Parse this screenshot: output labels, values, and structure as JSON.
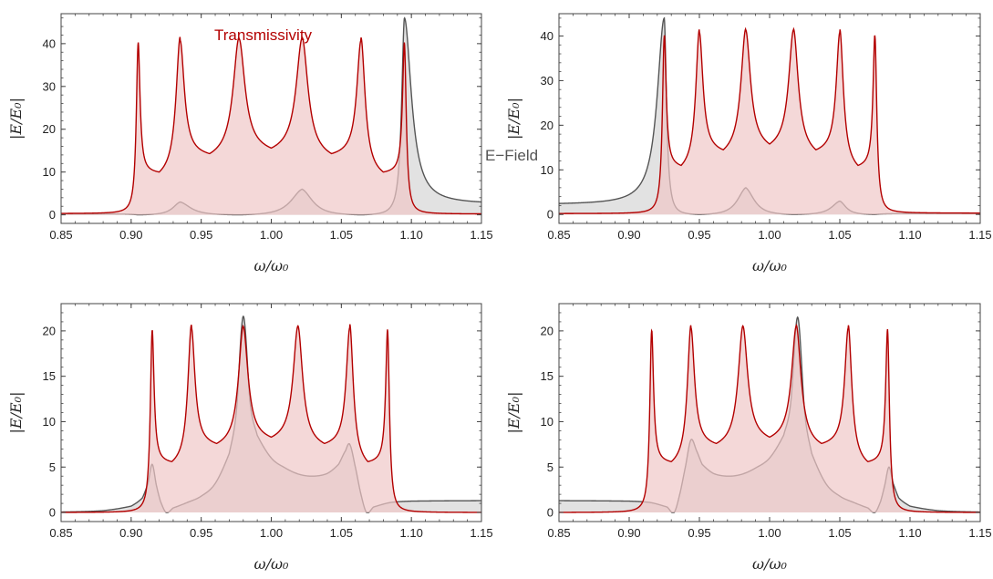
{
  "chart_data": [
    {
      "type": "area",
      "xlabel": "ω/ω₀",
      "ylabel": "|E/E₀|",
      "xlim": [
        0.85,
        1.15
      ],
      "ylim": [
        -2,
        47
      ],
      "xticks": [
        "0.85",
        "0.90",
        "0.95",
        "1.00",
        "1.05",
        "1.10",
        "1.15"
      ],
      "yticks": [
        "0",
        "10",
        "20",
        "30",
        "40"
      ],
      "grid": false,
      "annotations": [
        {
          "text": "Transmissivity",
          "color": "#b30000"
        },
        {
          "text": "E−Field",
          "color": "#555555"
        }
      ],
      "series": [
        {
          "name": "Transmissivity",
          "color": "#b30000",
          "fill": "#f0c8c8",
          "peaks": [
            {
              "x": 0.905,
              "y": 40,
              "w": 0.0016
            },
            {
              "x": 0.935,
              "y": 40,
              "w": 0.0035
            },
            {
              "x": 0.977,
              "y": 40,
              "w": 0.005
            },
            {
              "x": 1.022,
              "y": 40,
              "w": 0.005
            },
            {
              "x": 1.064,
              "y": 40,
              "w": 0.0035
            },
            {
              "x": 1.095,
              "y": 40,
              "w": 0.0016
            }
          ],
          "valleys": [
            {
              "x": 0.92,
              "y": 10
            },
            {
              "x": 0.956,
              "y": 14.3
            },
            {
              "x": 1.0,
              "y": 15.6
            },
            {
              "x": 1.043,
              "y": 14.3
            },
            {
              "x": 1.08,
              "y": 10
            }
          ],
          "edges": {
            "left": 0.3,
            "right": 0.2
          }
        },
        {
          "name": "E−Field",
          "color": "#555555",
          "fill": "#d8d8d8",
          "peaks": [
            {
              "x": 0.935,
              "y": 3
            },
            {
              "x": 1.022,
              "y": 6
            },
            {
              "x": 1.095,
              "y": 46
            }
          ],
          "zeros": [
            0.905,
            0.977,
            1.064
          ],
          "edges": {
            "left": 0.2,
            "right": 2.5
          }
        }
      ]
    },
    {
      "type": "area",
      "xlabel": "ω/ω₀",
      "ylabel": "|E/E₀|",
      "xlim": [
        0.85,
        1.15
      ],
      "ylim": [
        -2,
        45
      ],
      "xticks": [
        "0.85",
        "0.90",
        "0.95",
        "1.00",
        "1.05",
        "1.10",
        "1.15"
      ],
      "yticks": [
        "0",
        "10",
        "20",
        "30",
        "40"
      ],
      "grid": false,
      "series": [
        {
          "name": "Transmissivity",
          "color": "#b30000",
          "fill": "#f0c8c8",
          "peaks": [
            {
              "x": 0.925,
              "y": 40,
              "w": 0.0016
            },
            {
              "x": 0.95,
              "y": 40,
              "w": 0.003
            },
            {
              "x": 0.983,
              "y": 40,
              "w": 0.004
            },
            {
              "x": 1.017,
              "y": 40,
              "w": 0.004
            },
            {
              "x": 1.05,
              "y": 40,
              "w": 0.003
            },
            {
              "x": 1.075,
              "y": 40,
              "w": 0.0016
            }
          ],
          "valleys": [
            {
              "x": 0.937,
              "y": 11
            },
            {
              "x": 0.967,
              "y": 14.5
            },
            {
              "x": 1.0,
              "y": 15.8
            },
            {
              "x": 1.033,
              "y": 14.5
            },
            {
              "x": 1.063,
              "y": 11
            }
          ],
          "edges": {
            "left": 0.2,
            "right": 0.3
          }
        },
        {
          "name": "E−Field",
          "color": "#555555",
          "fill": "#d8d8d8",
          "peaks": [
            {
              "x": 0.925,
              "y": 44
            },
            {
              "x": 0.983,
              "y": 6
            },
            {
              "x": 1.05,
              "y": 3
            }
          ],
          "zeros": [
            0.95,
            1.017,
            1.075
          ],
          "edges": {
            "left": 2.2,
            "right": 0.2
          }
        }
      ]
    },
    {
      "type": "area",
      "xlabel": "ω/ω₀",
      "ylabel": "|E/E₀|",
      "xlim": [
        0.85,
        1.15
      ],
      "ylim": [
        -1,
        23
      ],
      "xticks": [
        "0.85",
        "0.90",
        "0.95",
        "1.00",
        "1.05",
        "1.10",
        "1.15"
      ],
      "yticks": [
        "0",
        "5",
        "10",
        "15",
        "20"
      ],
      "grid": false,
      "series": [
        {
          "name": "Transmissivity",
          "color": "#b30000",
          "fill": "#f0c8c8",
          "peaks": [
            {
              "x": 0.915,
              "y": 20,
              "w": 0.0016
            },
            {
              "x": 0.943,
              "y": 20,
              "w": 0.003
            },
            {
              "x": 0.98,
              "y": 20,
              "w": 0.004
            },
            {
              "x": 1.019,
              "y": 20,
              "w": 0.004
            },
            {
              "x": 1.056,
              "y": 20,
              "w": 0.003
            },
            {
              "x": 1.083,
              "y": 20,
              "w": 0.0016
            }
          ],
          "valleys": [
            {
              "x": 0.929,
              "y": 5.6
            },
            {
              "x": 0.961,
              "y": 7.6
            },
            {
              "x": 1.0,
              "y": 8.3
            },
            {
              "x": 1.038,
              "y": 7.6
            },
            {
              "x": 1.069,
              "y": 5.6
            }
          ],
          "edges": {
            "left": 0.0,
            "right": 0.0
          }
        },
        {
          "name": "E−Field",
          "color": "#555555",
          "fill": "#d8d8d8",
          "points": [
            [
              0.85,
              0.05
            ],
            [
              0.88,
              0.2
            ],
            [
              0.9,
              0.7
            ],
            [
              0.908,
              1.6
            ],
            [
              0.912,
              3.2
            ],
            [
              0.915,
              5.3
            ],
            [
              0.918,
              3.0
            ],
            [
              0.921,
              1.2
            ],
            [
              0.925,
              0.0
            ],
            [
              0.93,
              0.5
            ],
            [
              0.94,
              1.1
            ],
            [
              0.95,
              1.8
            ],
            [
              0.96,
              3.2
            ],
            [
              0.97,
              6.5
            ],
            [
              0.975,
              11
            ],
            [
              0.98,
              21.6
            ],
            [
              0.985,
              12
            ],
            [
              0.99,
              8.5
            ],
            [
              1.0,
              6.0
            ],
            [
              1.01,
              4.9
            ],
            [
              1.02,
              4.2
            ],
            [
              1.03,
              4.0
            ],
            [
              1.04,
              4.3
            ],
            [
              1.048,
              5.3
            ],
            [
              1.053,
              6.8
            ],
            [
              1.056,
              7.5
            ],
            [
              1.06,
              5.0
            ],
            [
              1.064,
              2.0
            ],
            [
              1.068,
              0.0
            ],
            [
              1.073,
              0.6
            ],
            [
              1.085,
              1.1
            ],
            [
              1.1,
              1.25
            ],
            [
              1.15,
              1.3
            ]
          ]
        }
      ]
    },
    {
      "type": "area",
      "xlabel": "ω/ω₀",
      "ylabel": "|E/E₀|",
      "xlim": [
        0.85,
        1.15
      ],
      "ylim": [
        -1,
        23
      ],
      "xticks": [
        "0.85",
        "0.90",
        "0.95",
        "1.00",
        "1.05",
        "1.10",
        "1.15"
      ],
      "yticks": [
        "0",
        "5",
        "10",
        "15",
        "20"
      ],
      "grid": false,
      "series": [
        {
          "name": "Transmissivity",
          "color": "#b30000",
          "fill": "#f0c8c8",
          "peaks": [
            {
              "x": 0.916,
              "y": 20,
              "w": 0.0016
            },
            {
              "x": 0.944,
              "y": 20,
              "w": 0.003
            },
            {
              "x": 0.981,
              "y": 20,
              "w": 0.004
            },
            {
              "x": 1.019,
              "y": 20,
              "w": 0.004
            },
            {
              "x": 1.056,
              "y": 20,
              "w": 0.003
            },
            {
              "x": 1.084,
              "y": 20,
              "w": 0.0016
            }
          ],
          "valleys": [
            {
              "x": 0.93,
              "y": 5.6
            },
            {
              "x": 0.962,
              "y": 7.6
            },
            {
              "x": 1.0,
              "y": 8.3
            },
            {
              "x": 1.037,
              "y": 7.6
            },
            {
              "x": 1.07,
              "y": 5.6
            }
          ],
          "edges": {
            "left": 0.0,
            "right": 0.0
          }
        },
        {
          "name": "E−Field",
          "color": "#555555",
          "fill": "#d8d8d8",
          "points": [
            [
              0.85,
              1.3
            ],
            [
              0.9,
              1.25
            ],
            [
              0.915,
              1.1
            ],
            [
              0.927,
              0.6
            ],
            [
              0.932,
              0.0
            ],
            [
              0.936,
              2.0
            ],
            [
              0.94,
              5.0
            ],
            [
              0.944,
              8.0
            ],
            [
              0.948,
              6.8
            ],
            [
              0.952,
              5.3
            ],
            [
              0.96,
              4.3
            ],
            [
              0.97,
              4.0
            ],
            [
              0.98,
              4.2
            ],
            [
              0.99,
              4.9
            ],
            [
              1.0,
              6.0
            ],
            [
              1.01,
              8.5
            ],
            [
              1.015,
              12
            ],
            [
              1.02,
              21.5
            ],
            [
              1.025,
              11
            ],
            [
              1.03,
              6.5
            ],
            [
              1.04,
              3.2
            ],
            [
              1.05,
              1.8
            ],
            [
              1.06,
              1.1
            ],
            [
              1.07,
              0.5
            ],
            [
              1.075,
              0.0
            ],
            [
              1.079,
              1.2
            ],
            [
              1.082,
              3.0
            ],
            [
              1.085,
              5.0
            ],
            [
              1.088,
              3.2
            ],
            [
              1.092,
              1.6
            ],
            [
              1.1,
              0.7
            ],
            [
              1.12,
              0.2
            ],
            [
              1.15,
              0.05
            ]
          ]
        }
      ]
    }
  ]
}
